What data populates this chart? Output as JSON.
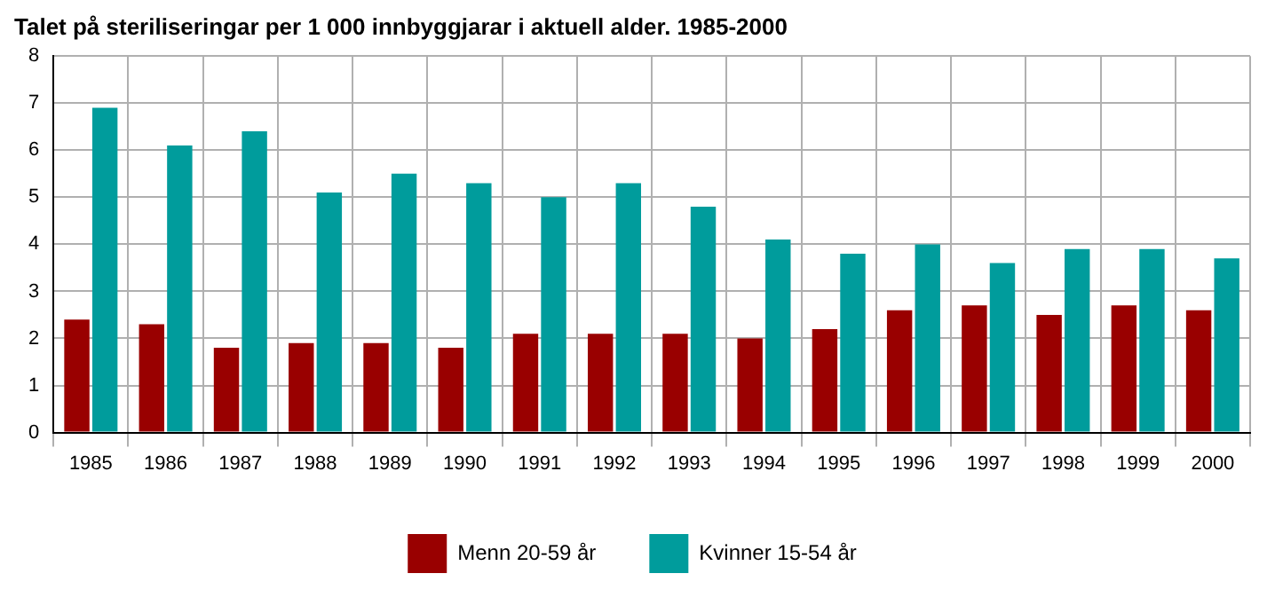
{
  "chart_data": {
    "type": "bar",
    "title": "Talet på steriliseringar per 1 000 innbyggjarar i aktuell alder. 1985-2000",
    "categories": [
      "1985",
      "1986",
      "1987",
      "1988",
      "1989",
      "1990",
      "1991",
      "1992",
      "1993",
      "1994",
      "1995",
      "1996",
      "1997",
      "1998",
      "1999",
      "2000"
    ],
    "series": [
      {
        "name": "Menn 20-59 år",
        "color": "#990000",
        "values": [
          2.4,
          2.3,
          1.8,
          1.9,
          1.9,
          1.8,
          2.1,
          2.1,
          2.1,
          2.0,
          2.2,
          2.6,
          2.7,
          2.5,
          2.7,
          2.6
        ]
      },
      {
        "name": "Kvinner 15-54 år",
        "color": "#009c9c",
        "values": [
          6.9,
          6.1,
          6.4,
          5.1,
          5.5,
          5.3,
          5.0,
          5.3,
          4.8,
          4.1,
          3.8,
          4.0,
          3.6,
          3.9,
          3.9,
          3.7
        ]
      }
    ],
    "ylim": [
      0,
      8
    ],
    "yticks": [
      0,
      1,
      2,
      3,
      4,
      5,
      6,
      7,
      8
    ],
    "grid": true,
    "legend": "bottom"
  }
}
